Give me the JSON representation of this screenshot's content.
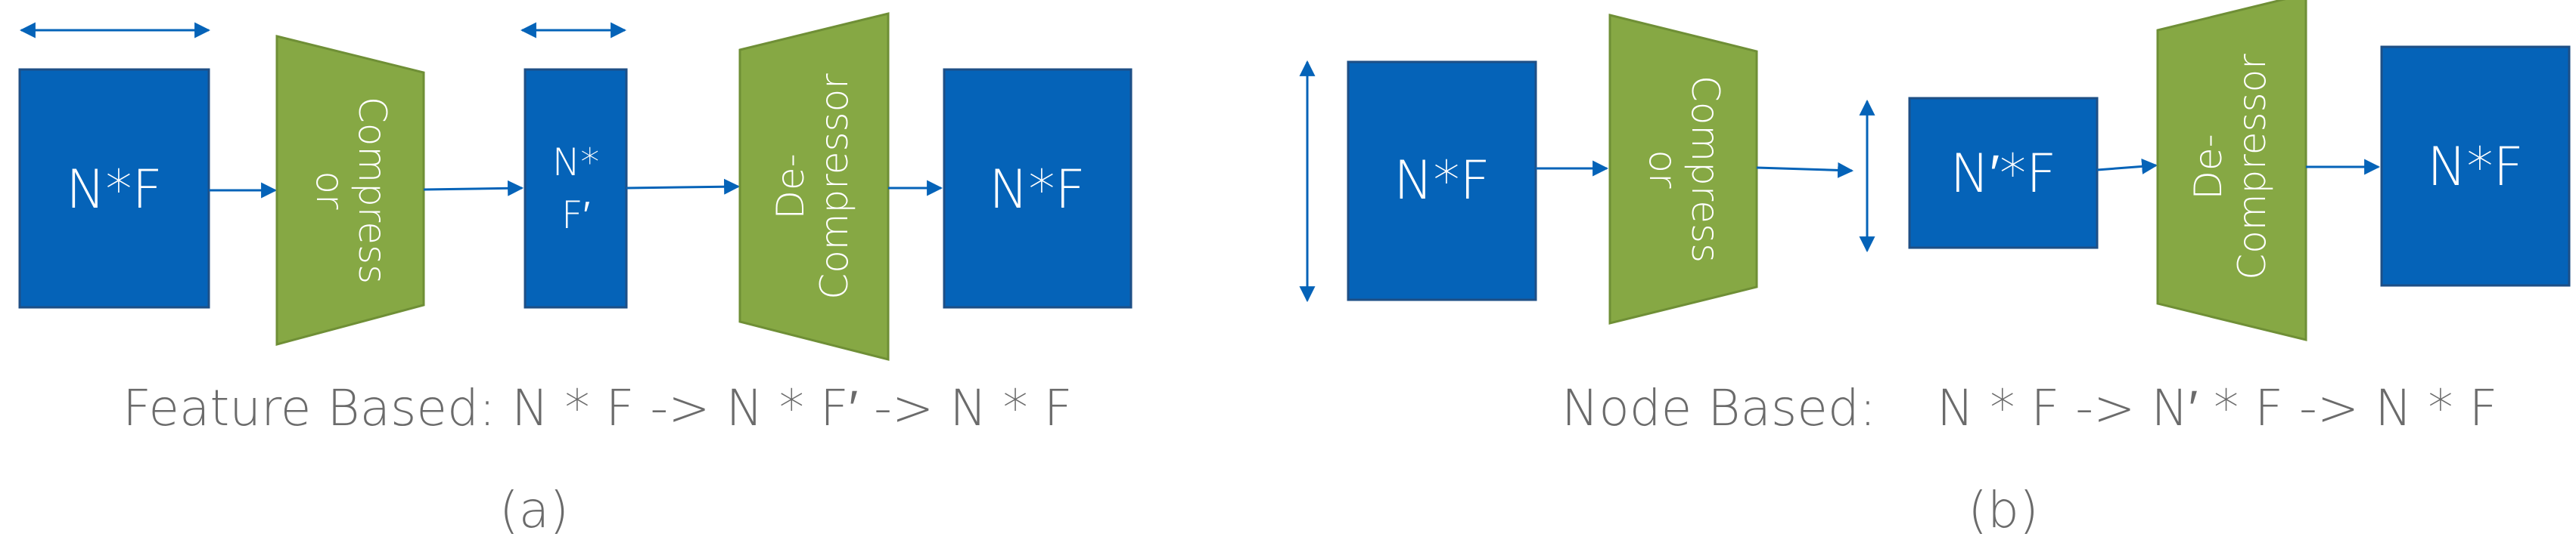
{
  "panel_a": {
    "box1_label": "N*F",
    "compressor_line1": "Compress",
    "compressor_line2": "or",
    "mid_line1": "N*",
    "mid_line2": "F′",
    "decompressor_line1": "De-",
    "decompressor_line2": "Compressor",
    "box3_label": "N*F",
    "caption": "Feature Based: N * F -> N * F′ -> N * F",
    "sublabel": "(a)"
  },
  "panel_b": {
    "box1_label": "N*F",
    "compressor_line1": "Compress",
    "compressor_line2": "or",
    "mid_label": "N′*F",
    "decompressor_line1": "De-",
    "decompressor_line2": "Compressor",
    "box3_label": "N*F",
    "caption_prefix": "Node Based:",
    "caption_formula": "N * F -> N′ * F -> N * F",
    "sublabel": "(b)"
  },
  "colors": {
    "box_blue": "#0563b8",
    "trapezoid_green": "#86a844",
    "arrow_blue": "#0563b8",
    "caption_gray": "#6b6b6b"
  }
}
